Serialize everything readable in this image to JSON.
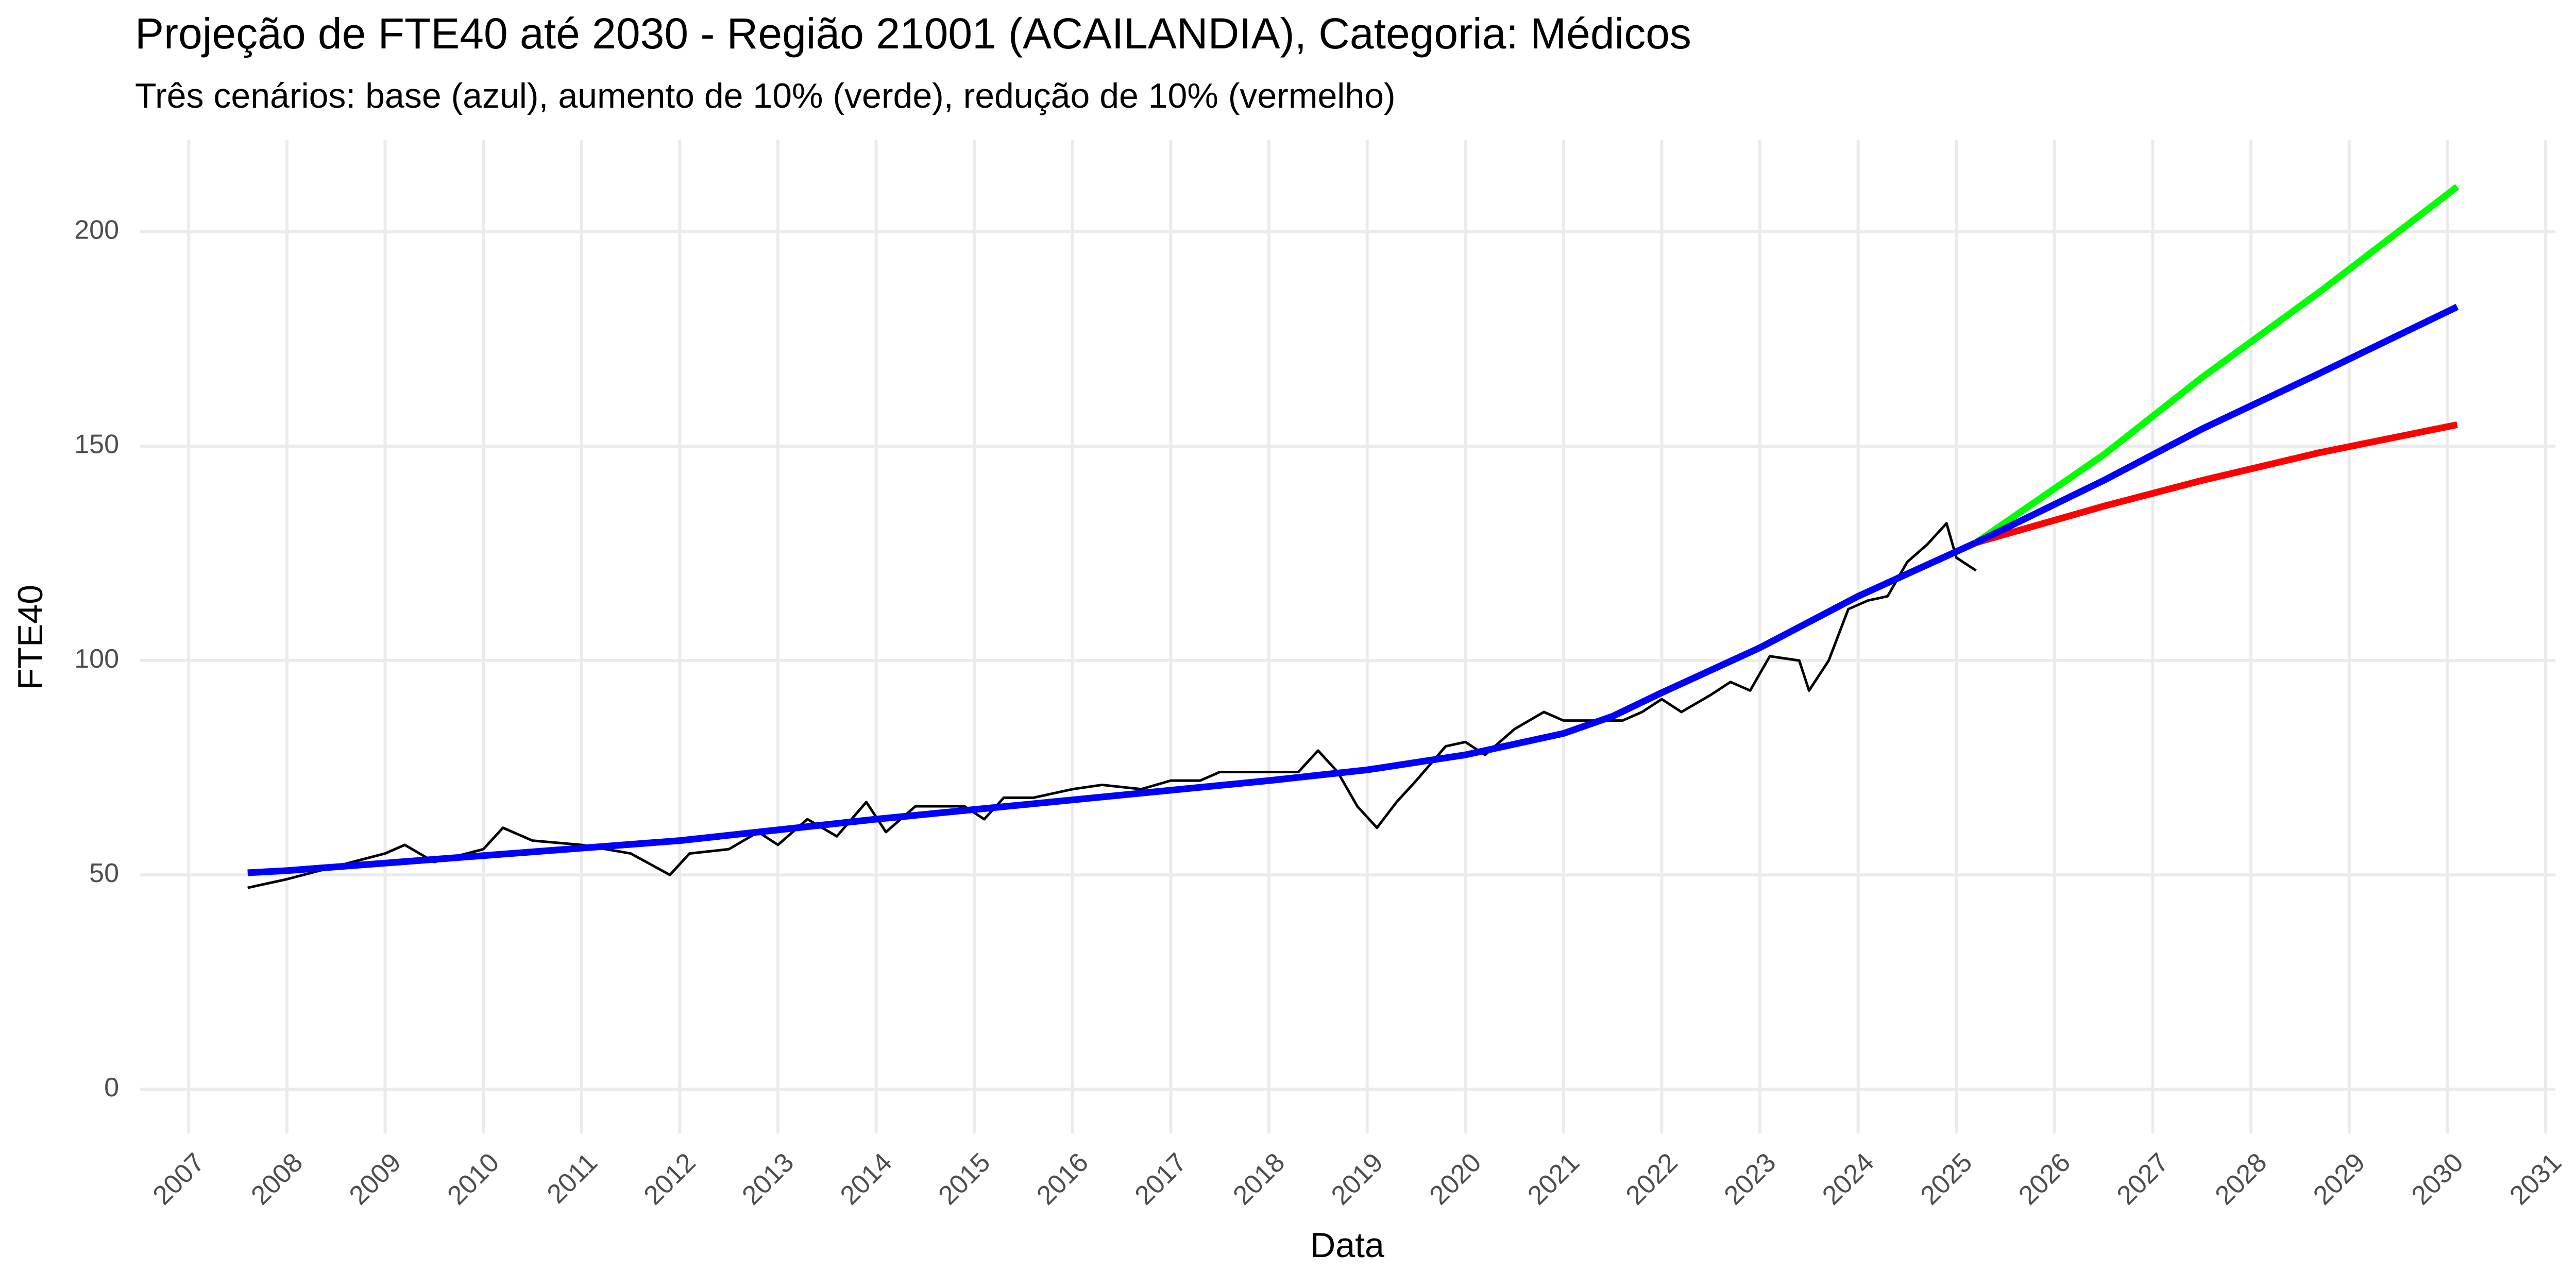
{
  "chart_data": {
    "type": "line",
    "title": "Projeção de FTE40 até 2030 - Região 21001 (ACAILANDIA), Categoria: Médicos",
    "subtitle": "Três cenários: base (azul), aumento de 10% (verde), redução de 10% (vermelho)",
    "x_label": "Data",
    "y_label": "FTE40",
    "xlim": [
      2006.5,
      2031.1
    ],
    "xticks": [
      2007,
      2008,
      2009,
      2010,
      2011,
      2012,
      2013,
      2014,
      2015,
      2016,
      2017,
      2018,
      2019,
      2020,
      2021,
      2022,
      2023,
      2024,
      2025,
      2026,
      2027,
      2028,
      2029,
      2030,
      2031
    ],
    "ylim": [
      -10.3,
      221.5
    ],
    "yticks": [
      0,
      50,
      100,
      150,
      200
    ],
    "grid": true,
    "series": [
      {
        "color": "#000000",
        "width": 5,
        "x": [
          2007.6,
          2008.0,
          2008.5,
          2009.0,
          2009.2,
          2009.5,
          2010.0,
          2010.2,
          2010.5,
          2011.0,
          2011.5,
          2011.9,
          2012.1,
          2012.5,
          2012.8,
          2013.0,
          2013.3,
          2013.6,
          2013.9,
          2014.1,
          2014.4,
          2014.9,
          2015.1,
          2015.3,
          2015.6,
          2016.0,
          2016.3,
          2016.7,
          2017.0,
          2017.3,
          2017.5,
          2017.8,
          2018.0,
          2018.3,
          2018.5,
          2018.7,
          2018.9,
          2019.1,
          2019.3,
          2019.5,
          2019.8,
          2020.0,
          2020.2,
          2020.5,
          2020.8,
          2021.0,
          2021.3,
          2021.6,
          2021.8,
          2022.0,
          2022.2,
          2022.5,
          2022.7,
          2022.9,
          2023.1,
          2023.4,
          2023.5,
          2023.7,
          2023.9,
          2024.1,
          2024.3,
          2024.5,
          2024.7,
          2024.9,
          2025.0,
          2025.2
        ],
        "values": [
          47,
          49,
          52,
          55,
          57,
          53,
          56,
          61,
          58,
          57,
          55,
          50,
          55,
          56,
          60,
          57,
          63,
          59,
          67,
          60,
          66,
          66,
          63,
          68,
          68,
          70,
          71,
          70,
          72,
          72,
          74,
          74,
          74,
          74,
          79,
          74,
          66,
          61,
          67,
          72,
          80,
          81,
          78,
          84,
          88,
          86,
          86,
          86,
          88,
          91,
          88,
          92,
          95,
          93,
          101,
          100,
          93,
          100,
          112,
          114,
          115,
          123,
          127,
          132,
          124,
          121
        ]
      },
      {
        "color": "#0000ff",
        "width": 13,
        "x": [
          2007.6,
          2008,
          2010,
          2012,
          2014,
          2016,
          2018,
          2019,
          2020,
          2021,
          2021.5,
          2022,
          2023,
          2024,
          2025.2
        ],
        "values": [
          50.5,
          51,
          54.5,
          58,
          63,
          67.5,
          72,
          74.5,
          78,
          83,
          87,
          92.5,
          103,
          115,
          127.5
        ]
      },
      {
        "color": "#00ff00",
        "width": 13,
        "x": [
          2025.2,
          2026.5,
          2027.5,
          2028.7,
          2030.1
        ],
        "values": [
          127.5,
          148,
          166,
          186,
          210.5
        ]
      },
      {
        "color": "#ff0000",
        "width": 13,
        "x": [
          2025.2,
          2026.5,
          2027.5,
          2028.7,
          2030.1
        ],
        "values": [
          127.5,
          136,
          142,
          148.5,
          155
        ]
      },
      {
        "color": "#0000ff",
        "width": 13,
        "x": [
          2025.2,
          2026.5,
          2027.5,
          2028.7,
          2030.1
        ],
        "values": [
          127.5,
          142,
          154,
          167,
          182.5
        ]
      }
    ]
  }
}
